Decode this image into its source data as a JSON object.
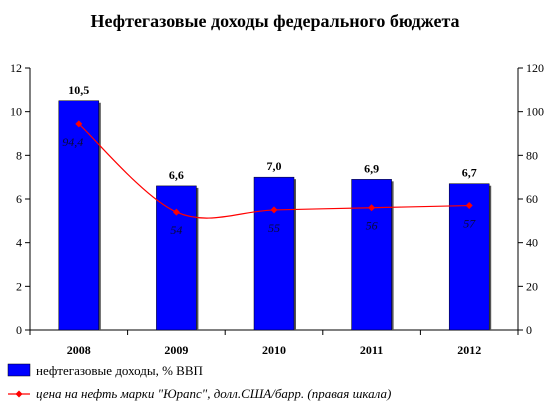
{
  "chart_data": {
    "type": "bar",
    "title": "Нефтегазовые доходы федерального бюджета",
    "categories": [
      "2008",
      "2009",
      "2010",
      "2011",
      "2012"
    ],
    "left_axis": {
      "ylim": [
        0,
        12
      ],
      "ticks": [
        "0",
        "2",
        "4",
        "6",
        "8",
        "10",
        "12"
      ]
    },
    "right_axis": {
      "ylim": [
        0,
        120
      ],
      "ticks": [
        "0",
        "20",
        "40",
        "60",
        "80",
        "100",
        "120"
      ]
    },
    "grid": false,
    "legend_placement": "bottom",
    "series": [
      {
        "name": "нефтегазовые доходы, % ВВП",
        "kind": "bar",
        "axis": "left",
        "color": "#0000ff",
        "values": [
          10.5,
          6.6,
          7.0,
          6.9,
          6.7
        ],
        "labels": [
          "10,5",
          "6,6",
          "7,0",
          "6,9",
          "6,7"
        ]
      },
      {
        "name": "цена на нефть марки \"Юрапс\", долл.США/барр. (правая шкала)",
        "kind": "line",
        "axis": "right",
        "color": "#ff0000",
        "values": [
          94.4,
          54,
          55,
          56,
          57
        ],
        "labels": [
          "94,4",
          "54",
          "55",
          "56",
          "57"
        ]
      }
    ]
  }
}
